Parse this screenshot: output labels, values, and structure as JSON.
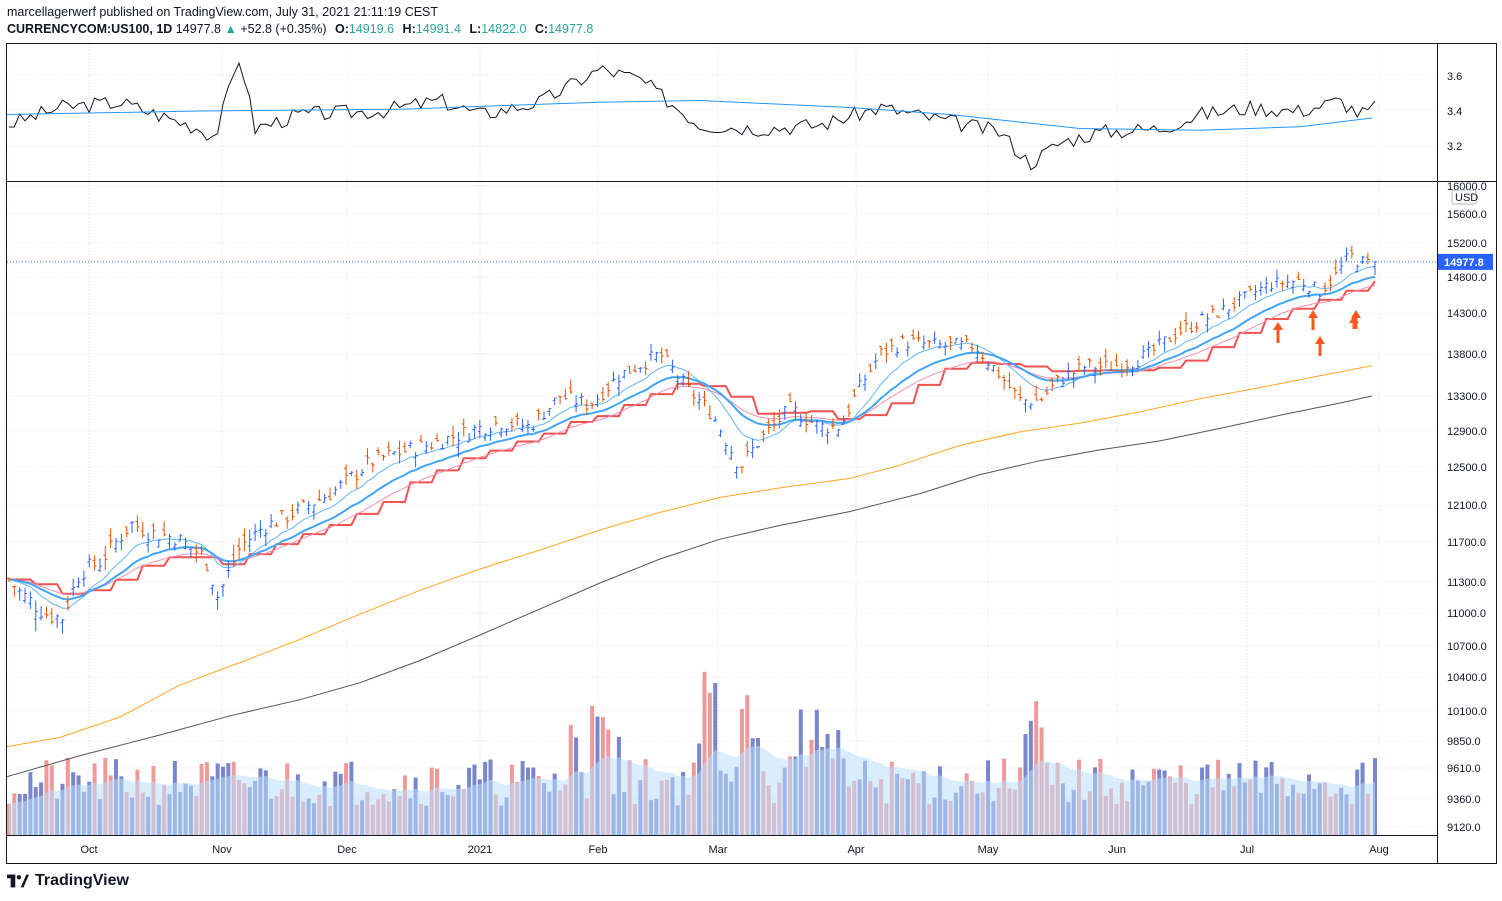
{
  "header": {
    "publisher_line": "marcellagerwerf published on TradingView.com, July 31, 2021 21:11:19 CEST",
    "symbol": "CURRENCYCOM:US100, 1D",
    "last": "14977.8",
    "change_arrow": "▲",
    "change": "+52.8 (+0.35%)",
    "o_label": "O:",
    "o_value": "14919.6",
    "h_label": "H:",
    "h_value": "14991.4",
    "l_label": "L:",
    "l_value": "14822.0",
    "c_label": "C:",
    "c_value": "14977.8"
  },
  "footer": {
    "brand": "TradingView"
  },
  "price_axis": {
    "currency": "USD",
    "last_price_badge": "14977.8",
    "ticks": [
      "16000.0",
      "15600.0",
      "15200.0",
      "14800.0",
      "14300.0",
      "13800.0",
      "13300.0",
      "12900.0",
      "12500.0",
      "12100.0",
      "11700.0",
      "11300.0",
      "11000.0",
      "10700.0",
      "10400.0",
      "10100.0",
      "9850.0",
      "9610.0",
      "9360.0",
      "9120.0"
    ]
  },
  "indicator_axis": {
    "ticks": [
      "3.6",
      "3.4",
      "3.2"
    ]
  },
  "time_axis": {
    "labels": [
      "Oct",
      "Nov",
      "Dec",
      "2021",
      "Feb",
      "Mar",
      "Apr",
      "May",
      "Jun",
      "Jul",
      "Aug"
    ]
  },
  "colors": {
    "up_bar": "#2962ff",
    "down_bar": "#e65100",
    "ema_fast": "#64b5f6",
    "ema_slow": "#42a5f5",
    "ma_red": "#ef5350",
    "ma_orange": "#ffa726",
    "ma_black": "#555555",
    "vol_up": "#7986cb",
    "vol_down": "#ef9a9a",
    "vol_ma_fill": "#bbdefb",
    "osc_line": "#131722",
    "osc_ma": "#2196f3",
    "arrow": "#ff5722"
  },
  "chart_data": {
    "type": "ohlc",
    "x_labels": [
      "Oct",
      "Nov",
      "Dec",
      "2021",
      "Feb",
      "Mar",
      "Apr",
      "May",
      "Jun",
      "Jul",
      "Aug"
    ],
    "price_range": [
      8900,
      16200
    ],
    "price_anchors": [
      {
        "month": "Sep 2020 end",
        "price": 11150
      },
      {
        "month": "Oct mid",
        "price": 11700
      },
      {
        "month": "Nov start",
        "price": 11000
      },
      {
        "month": "Nov mid",
        "price": 12000
      },
      {
        "month": "Dec start",
        "price": 12250
      },
      {
        "month": "2021",
        "price": 12850
      },
      {
        "month": "Feb mid",
        "price": 13750
      },
      {
        "month": "Mar early",
        "price": 12300
      },
      {
        "month": "Apr mid",
        "price": 13950
      },
      {
        "month": "May mid",
        "price": 13100
      },
      {
        "month": "Jun",
        "price": 13600
      },
      {
        "month": "Jul",
        "price": 14500
      },
      {
        "month": "Jul end",
        "price": 14977.8
      }
    ],
    "last_close": 14977.8,
    "oscillator_range": [
      3.05,
      3.75
    ],
    "arrows_count": 5
  }
}
